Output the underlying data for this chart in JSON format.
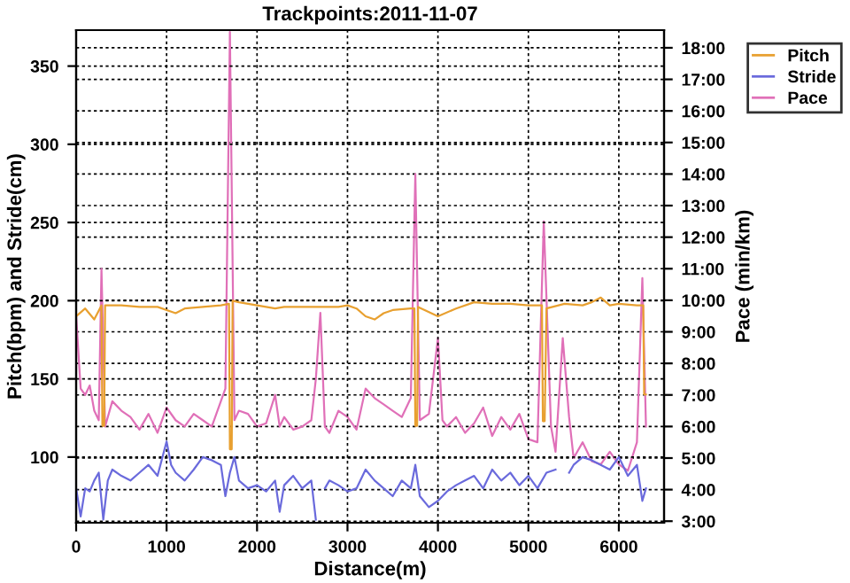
{
  "chart_data": {
    "type": "line",
    "title": "Trackpoints:2011-11-07",
    "xlabel": "Distance(m)",
    "ylabel": "Pitch(bpm) and Stride(cm)",
    "y2label": "Pace (min/km)",
    "xlim": [
      0,
      6500
    ],
    "xticks": [
      0,
      1000,
      2000,
      3000,
      4000,
      5000,
      6000
    ],
    "ylim": [
      58,
      373
    ],
    "yticks": [
      100,
      150,
      200,
      250,
      300,
      350
    ],
    "y2lim": [
      2.95,
      18.56
    ],
    "y2ticks": [
      {
        "value": 3,
        "label": "3:00"
      },
      {
        "value": 4,
        "label": "4:00"
      },
      {
        "value": 5,
        "label": "5:00"
      },
      {
        "value": 6,
        "label": "6:00"
      },
      {
        "value": 7,
        "label": "7:00"
      },
      {
        "value": 8,
        "label": "8:00"
      },
      {
        "value": 9,
        "label": "9:00"
      },
      {
        "value": 10,
        "label": "10:00"
      },
      {
        "value": 11,
        "label": "11:00"
      },
      {
        "value": 12,
        "label": "12:00"
      },
      {
        "value": 13,
        "label": "13:00"
      },
      {
        "value": 14,
        "label": "14:00"
      },
      {
        "value": 15,
        "label": "15:00"
      },
      {
        "value": 16,
        "label": "16:00"
      },
      {
        "value": 17,
        "label": "17:00"
      },
      {
        "value": 18,
        "label": "18:00"
      }
    ],
    "grid": true,
    "legend": "top right",
    "line_style": "solid",
    "marker": "none",
    "series": [
      {
        "name": "Pitch",
        "color": "#e8a030",
        "x": [
          0,
          100,
          200,
          280,
          290,
          310,
          320,
          500,
          700,
          900,
          1100,
          1200,
          1400,
          1600,
          1690,
          1700,
          1720,
          1730,
          1800,
          2000,
          2200,
          2300,
          2600,
          2900,
          3000,
          3100,
          3200,
          3300,
          3400,
          3500,
          3700,
          3740,
          3750,
          3770,
          3780,
          4000,
          4200,
          4400,
          4600,
          4800,
          5000,
          5150,
          5160,
          5180,
          5200,
          5400,
          5600,
          5700,
          5800,
          5900,
          6000,
          6200,
          6270,
          6280,
          6300
        ],
        "values": [
          190,
          195,
          188,
          197,
          120,
          120,
          197,
          197,
          196,
          196,
          192,
          195,
          196,
          197,
          198,
          105,
          105,
          200,
          199,
          197,
          195,
          196,
          196,
          196,
          197,
          195,
          190,
          188,
          192,
          194,
          195,
          195,
          120,
          120,
          196,
          190,
          195,
          199,
          198,
          198,
          197,
          197,
          123,
          123,
          195,
          198,
          197,
          199,
          202,
          197,
          198,
          197,
          197,
          140,
          140
        ]
      },
      {
        "name": "Stride",
        "color": "#6a6adc",
        "x": [
          0,
          50,
          100,
          150,
          200,
          250,
          300,
          350,
          400,
          500,
          600,
          700,
          800,
          900,
          1000,
          1050,
          1100,
          1200,
          1300,
          1400,
          1500,
          1600,
          1650,
          1700,
          1750,
          1800,
          1900,
          2000,
          2100,
          2200,
          2250,
          2300,
          2400,
          2500,
          2600,
          2650,
          2700,
          2750,
          2800,
          2900,
          3000,
          3100,
          3200,
          3300,
          3400,
          3500,
          3600,
          3700,
          3750,
          3800,
          3900,
          4000,
          4100,
          4200,
          4300,
          4400,
          4500,
          4600,
          4700,
          4800,
          4900,
          5000,
          5100,
          5200,
          5300,
          5380,
          5450,
          5500,
          5600,
          5700,
          5800,
          5900,
          6000,
          6100,
          6200,
          6260,
          6300
        ],
        "values": [
          80,
          62,
          80,
          78,
          85,
          90,
          60,
          85,
          92,
          88,
          85,
          90,
          95,
          88,
          110,
          95,
          90,
          85,
          92,
          100,
          98,
          95,
          75,
          90,
          100,
          85,
          80,
          82,
          78,
          85,
          65,
          82,
          88,
          80,
          85,
          60,
          null,
          80,
          85,
          82,
          78,
          80,
          92,
          85,
          80,
          75,
          85,
          80,
          95,
          75,
          68,
          72,
          78,
          82,
          85,
          88,
          80,
          92,
          85,
          90,
          82,
          88,
          80,
          90,
          92,
          null,
          90,
          95,
          100,
          98,
          95,
          92,
          100,
          88,
          95,
          72,
          80
        ]
      },
      {
        "name": "Pace",
        "color": "#e070b8",
        "axis": "y2",
        "x": [
          0,
          50,
          100,
          150,
          200,
          250,
          280,
          320,
          400,
          500,
          600,
          700,
          800,
          900,
          1000,
          1100,
          1200,
          1300,
          1400,
          1500,
          1600,
          1650,
          1700,
          1750,
          1800,
          1900,
          2000,
          2100,
          2200,
          2250,
          2300,
          2400,
          2500,
          2600,
          2650,
          2700,
          2750,
          2800,
          2900,
          3000,
          3100,
          3200,
          3300,
          3400,
          3500,
          3600,
          3700,
          3750,
          3800,
          3900,
          4000,
          4050,
          4100,
          4200,
          4300,
          4400,
          4500,
          4600,
          4700,
          4800,
          4900,
          5000,
          5100,
          5170,
          5250,
          5300,
          5380,
          5450,
          5500,
          5600,
          5700,
          5800,
          5900,
          6000,
          6100,
          6200,
          6260,
          6300
        ],
        "values": [
          9.5,
          7.2,
          7.0,
          7.3,
          6.5,
          6.2,
          11.0,
          6.0,
          6.8,
          6.5,
          6.3,
          5.9,
          6.4,
          5.8,
          6.6,
          6.2,
          6.0,
          6.4,
          6.2,
          6.0,
          6.8,
          7.2,
          18.5,
          6.2,
          6.5,
          6.4,
          6.0,
          6.1,
          7.0,
          6.0,
          6.3,
          5.9,
          6.0,
          6.2,
          7.5,
          9.6,
          6.0,
          5.8,
          6.5,
          6.3,
          5.9,
          7.2,
          6.9,
          6.7,
          6.5,
          6.3,
          6.9,
          14.0,
          6.2,
          6.4,
          8.8,
          6.2,
          6.0,
          6.3,
          5.8,
          6.1,
          6.6,
          5.7,
          6.3,
          5.9,
          6.4,
          5.6,
          5.5,
          12.5,
          6.0,
          5.2,
          8.8,
          6.3,
          5.0,
          5.5,
          4.9,
          4.8,
          5.2,
          4.8,
          4.6,
          5.5,
          10.7,
          6.0
        ]
      }
    ]
  }
}
